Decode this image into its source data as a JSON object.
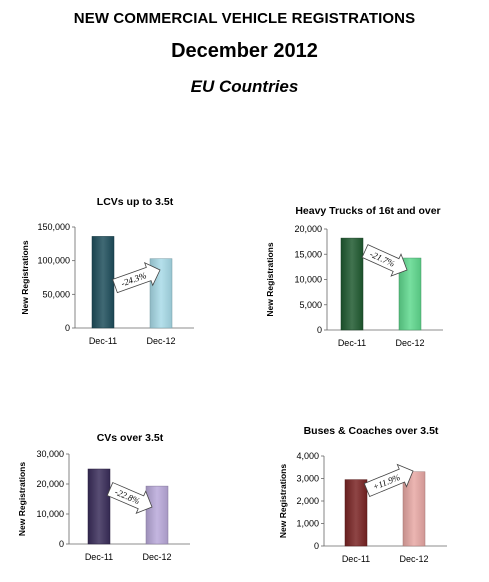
{
  "header": {
    "title": "NEW COMMERCIAL VEHICLE REGISTRATIONS",
    "period": "December 2012",
    "region": "EU  Countries"
  },
  "chart_data": [
    {
      "type": "bar",
      "title": "LCVs up to 3.5t",
      "ylabel": "New Registrations",
      "categories": [
        "Dec-11",
        "Dec-12"
      ],
      "values": [
        136000,
        103000
      ],
      "ylim": [
        0,
        150000
      ],
      "yticks": [
        "0",
        "50,000",
        "100,000",
        "150,000"
      ],
      "change": "-24.3%",
      "colors": [
        "#1e4e5c",
        "#a8dbe8"
      ]
    },
    {
      "type": "bar",
      "title": "Heavy Trucks of 16t and over",
      "ylabel": "New Registrations",
      "categories": [
        "Dec-11",
        "Dec-12"
      ],
      "values": [
        18200,
        14250
      ],
      "ylim": [
        0,
        20000
      ],
      "yticks": [
        "0",
        "5,000",
        "10,000",
        "15,000",
        "20,000"
      ],
      "change": "-21.7%",
      "colors": [
        "#1f5a30",
        "#5fd98e"
      ]
    },
    {
      "type": "bar",
      "title": "CVs over 3.5t",
      "ylabel": "New Registrations",
      "categories": [
        "Dec-11",
        "Dec-12"
      ],
      "values": [
        25000,
        19300
      ],
      "ylim": [
        0,
        30000
      ],
      "yticks": [
        "0",
        "10,000",
        "20,000",
        "30,000"
      ],
      "change": "-22.8%",
      "colors": [
        "#3a2d5a",
        "#b9a9da"
      ]
    },
    {
      "type": "bar",
      "title": "Buses & Coaches over 3.5t",
      "ylabel": "New Registrations",
      "categories": [
        "Dec-11",
        "Dec-12"
      ],
      "values": [
        2950,
        3300
      ],
      "ylim": [
        0,
        4000
      ],
      "yticks": [
        "0",
        "1,000",
        "2,000",
        "3,000",
        "4,000"
      ],
      "change": "+11.9%",
      "colors": [
        "#7a2424",
        "#e8a8a4"
      ]
    }
  ]
}
